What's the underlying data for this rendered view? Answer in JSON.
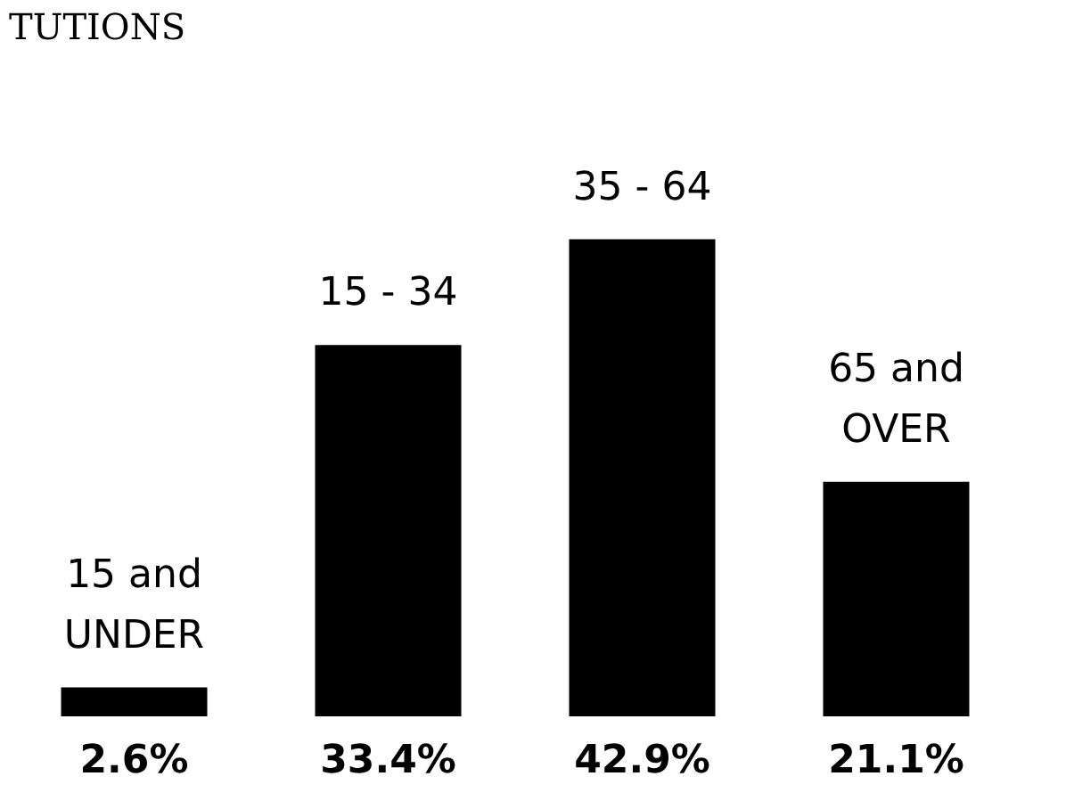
{
  "chart_data": {
    "type": "bar",
    "title": "TUTIONS",
    "categories": [
      "15 and\nUNDER",
      "15 - 34",
      "35 - 64",
      "65 and\nOVER"
    ],
    "values": [
      2.6,
      33.4,
      42.9,
      21.1
    ],
    "value_labels": [
      "2.6%",
      "33.4%",
      "42.9%",
      "21.1%"
    ],
    "color": "#000000"
  }
}
